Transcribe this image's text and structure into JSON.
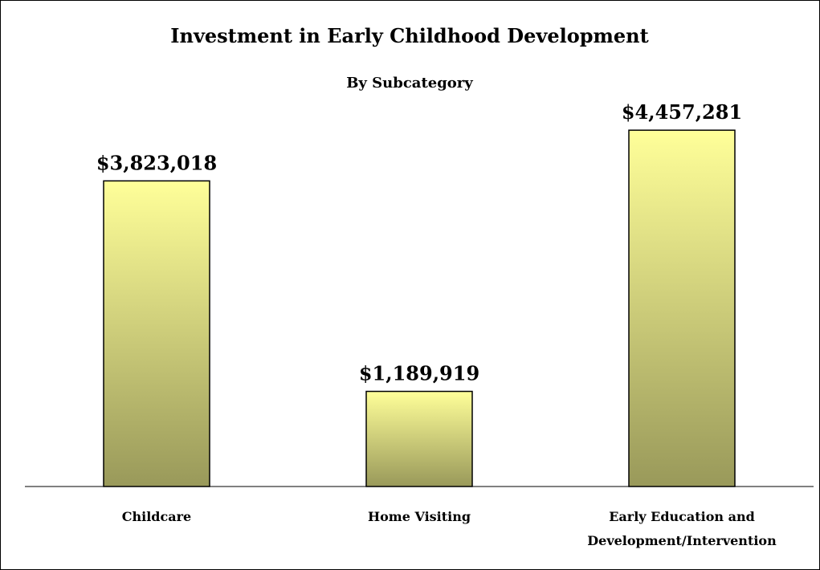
{
  "chart_data": {
    "type": "bar",
    "title": "Investment in Early Childhood Development",
    "subtitle": "By Subcategory",
    "categories": [
      [
        "Childcare"
      ],
      [
        "Home Visiting"
      ],
      [
        "Early Education and",
        "Development/Intervention"
      ]
    ],
    "values": [
      3823018,
      1189919,
      4457281
    ],
    "value_labels": [
      "$3,823,018",
      "$1,189,919",
      "$4,457,281"
    ],
    "ylim": [
      0,
      4700000
    ],
    "grid": false,
    "legend": "none",
    "colors": {
      "bar_top": "#ffff99",
      "bar_bottom": "#99995a",
      "bar_outline": "#000000",
      "axis": "#000000",
      "text": "#000000"
    }
  }
}
